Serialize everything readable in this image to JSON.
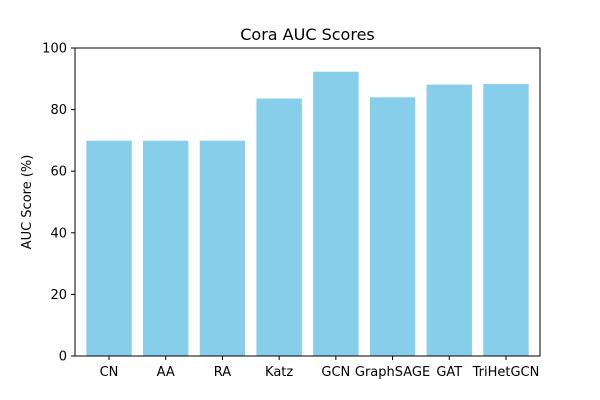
{
  "chart_data": {
    "type": "bar",
    "title": "Cora AUC Scores",
    "xlabel": "",
    "ylabel": "AUC Score (%)",
    "categories": [
      "CN",
      "AA",
      "RA",
      "Katz",
      "GCN",
      "GraphSAGE",
      "GAT",
      "TriHetGCN"
    ],
    "values": [
      69.9,
      69.9,
      69.9,
      83.6,
      92.3,
      84.0,
      88.1,
      88.3
    ],
    "ylim": [
      0,
      100
    ],
    "yticks": [
      "0",
      "20",
      "40",
      "60",
      "80",
      "100"
    ],
    "bar_color": "#87ceeb",
    "grid": false,
    "legend": "none"
  }
}
